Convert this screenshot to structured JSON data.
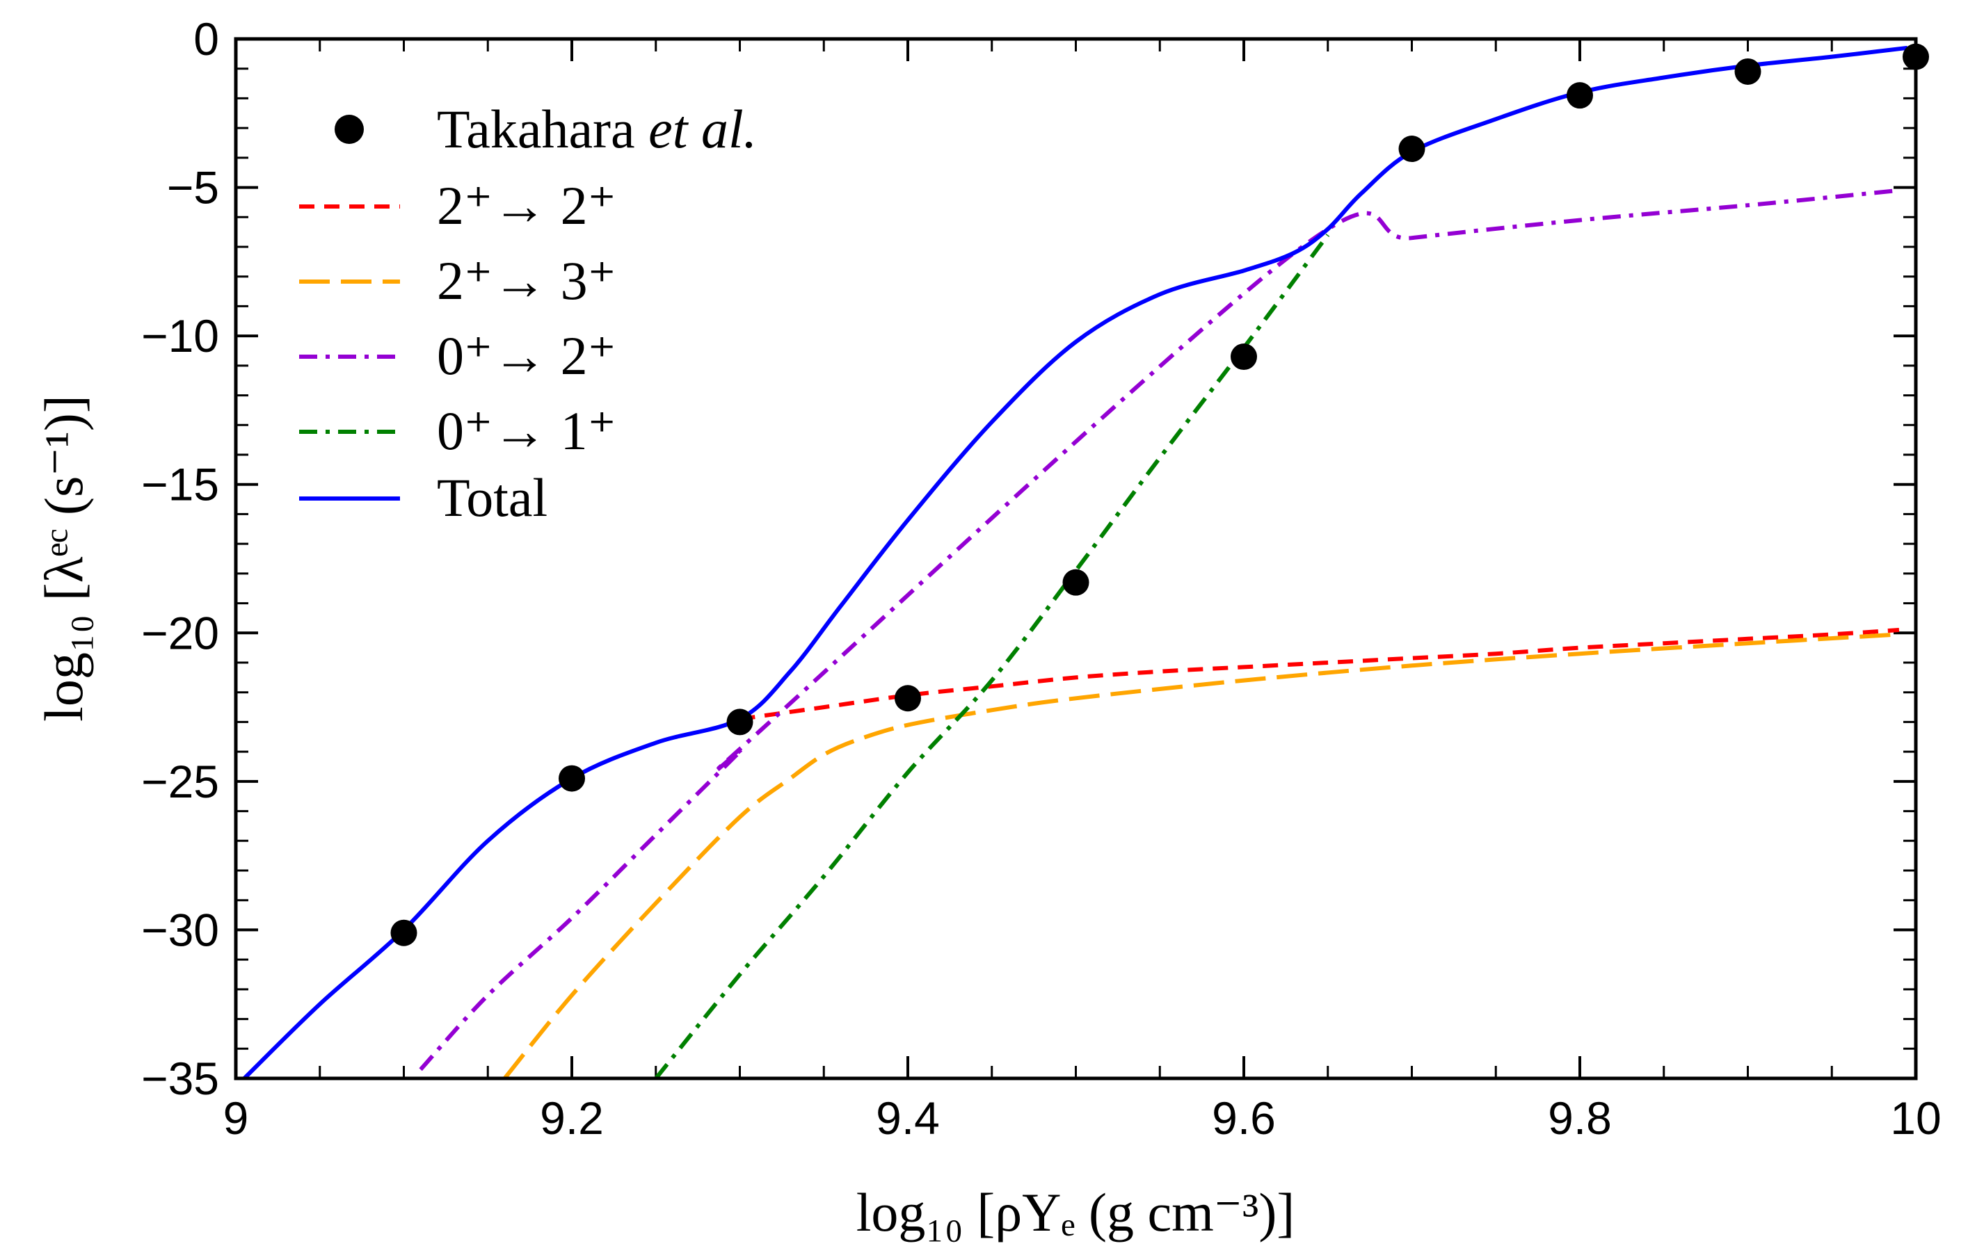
{
  "chart_data": {
    "type": "line",
    "title": "",
    "xlabel": "log₁₀ [ρYₑ (g cm⁻³)]",
    "ylabel": "log₁₀ [λᵉᶜ (s⁻¹)]",
    "xlim": [
      9,
      10
    ],
    "ylim": [
      -35,
      0
    ],
    "xticks": [
      9,
      9.2,
      9.4,
      9.6,
      9.8,
      10
    ],
    "xtick_labels": [
      "9",
      "9.2",
      "9.4",
      "9.6",
      "9.8",
      "10"
    ],
    "yticks": [
      0,
      -5,
      -10,
      -15,
      -20,
      -25,
      -30,
      -35
    ],
    "ytick_labels": [
      "0",
      "−5",
      "−10",
      "−15",
      "−20",
      "−25",
      "−30",
      "−35"
    ],
    "grid": false,
    "legend_position": "top-left",
    "series": [
      {
        "name": "Takahara et al.",
        "kind": "scatter",
        "color": "#000000",
        "x": [
          9.1,
          9.2,
          9.3,
          9.4,
          9.5,
          9.6,
          9.7,
          9.8,
          9.9,
          10.0
        ],
        "y": [
          -30.1,
          -24.9,
          -23.0,
          -22.2,
          -18.3,
          -10.7,
          -3.7,
          -1.9,
          -1.1,
          -0.6
        ]
      },
      {
        "name": "2⁺ → 2⁺",
        "kind": "line",
        "style": "dashed",
        "color": "#ff0000",
        "x": [
          9.3,
          9.35,
          9.4,
          9.45,
          9.5,
          9.55,
          9.6,
          9.65,
          9.7,
          9.75,
          9.8,
          9.85,
          9.9,
          9.95,
          9.99
        ],
        "y": [
          -22.9,
          -22.5,
          -22.1,
          -21.8,
          -21.5,
          -21.3,
          -21.15,
          -21.0,
          -20.85,
          -20.7,
          -20.5,
          -20.35,
          -20.2,
          -20.05,
          -19.9
        ]
      },
      {
        "name": "2⁺ → 3⁺",
        "kind": "line",
        "style": "long-dashed",
        "color": "#ffa500",
        "x": [
          9.16,
          9.2,
          9.25,
          9.3,
          9.33,
          9.35,
          9.37,
          9.4,
          9.45,
          9.5,
          9.6,
          9.7,
          9.8,
          9.9,
          9.99
        ],
        "y": [
          -35.0,
          -32.2,
          -29.1,
          -26.2,
          -24.9,
          -24.1,
          -23.6,
          -23.1,
          -22.6,
          -22.2,
          -21.6,
          -21.1,
          -20.7,
          -20.35,
          -20.05
        ]
      },
      {
        "name": "0⁺ → 2⁺",
        "kind": "line",
        "style": "dash-dot",
        "color": "#9400d3",
        "x": [
          9.11,
          9.15,
          9.2,
          9.25,
          9.3,
          9.31,
          9.63,
          9.7,
          9.8,
          9.9,
          9.99
        ],
        "y": [
          -34.7,
          -32.2,
          -29.6,
          -26.8,
          -24.0,
          -23.4,
          -7.2,
          -6.7,
          -6.1,
          -5.6,
          -5.1
        ]
      },
      {
        "name": "0⁺ → 1⁺",
        "kind": "line",
        "style": "dash-dot",
        "color": "#008000",
        "x": [
          9.25,
          9.3,
          9.35,
          9.4,
          9.45,
          9.5,
          9.55,
          9.6,
          9.65
        ],
        "y": [
          -35.0,
          -31.5,
          -28.2,
          -24.7,
          -21.6,
          -17.9,
          -14.1,
          -10.4,
          -6.6
        ]
      },
      {
        "name": "Total",
        "kind": "line",
        "style": "solid",
        "color": "#0000ff",
        "x": [
          9.005,
          9.05,
          9.1,
          9.15,
          9.2,
          9.25,
          9.3,
          9.33,
          9.36,
          9.4,
          9.45,
          9.5,
          9.55,
          9.6,
          9.63,
          9.65,
          9.67,
          9.7,
          9.75,
          9.8,
          9.85,
          9.9,
          9.95,
          9.995
        ],
        "y": [
          -35.0,
          -32.5,
          -30.0,
          -27.0,
          -24.9,
          -23.7,
          -22.9,
          -21.3,
          -19.1,
          -16.2,
          -12.9,
          -10.2,
          -8.6,
          -7.8,
          -7.2,
          -6.4,
          -5.2,
          -3.8,
          -2.7,
          -1.8,
          -1.3,
          -0.9,
          -0.6,
          -0.3
        ]
      }
    ]
  },
  "legend": {
    "items": [
      {
        "label": "Takahara ",
        "label_italic": "et al.",
        "label_suffix": ""
      },
      {
        "label": "2⁺→ 2⁺"
      },
      {
        "label": "2⁺→ 3⁺"
      },
      {
        "label": "0⁺→ 2⁺"
      },
      {
        "label": "0⁺→ 1⁺"
      },
      {
        "label": "Total"
      }
    ]
  }
}
